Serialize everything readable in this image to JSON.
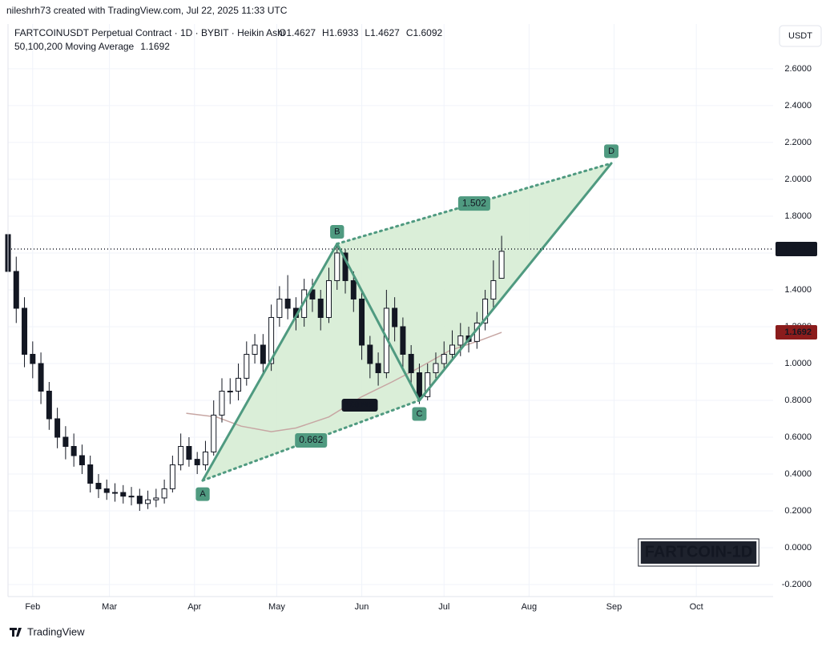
{
  "header": {
    "credit": "nileshrh73 created with TradingView.com, Jul 22, 2025 11:33 UTC",
    "symbol": "FARTCOINUSDT Perpetual Contract · 1D · BYBIT · Heikin Ashi",
    "ohlc": [
      "O1.4627",
      "H1.6933",
      "L1.4627",
      "C1.6092"
    ],
    "ma_legend": "50,100,200 Moving Average",
    "currency": "USDT"
  },
  "footer": {
    "brand": "TradingView"
  },
  "chart_data": {
    "type": "candlestick",
    "watermark": "FARTCOIN-1D",
    "x": [
      22,
      25,
      28,
      31,
      34,
      37,
      40,
      43,
      46,
      49,
      52,
      55,
      58,
      61,
      64,
      67,
      70,
      73,
      76,
      79,
      82,
      85,
      88,
      91,
      94,
      97,
      100,
      103,
      106,
      109,
      112,
      115,
      118,
      121,
      124,
      127,
      130,
      133,
      136,
      139,
      142,
      145,
      148,
      151,
      154,
      157,
      160,
      163,
      166,
      169,
      172,
      175,
      178,
      181,
      184,
      187,
      190,
      193,
      196,
      199,
      202
    ],
    "open": [
      1.7,
      1.5,
      1.3,
      1.05,
      1.0,
      0.85,
      0.7,
      0.6,
      0.55,
      0.5,
      0.45,
      0.35,
      0.32,
      0.3,
      0.3,
      0.28,
      0.28,
      0.24,
      0.26,
      0.27,
      0.32,
      0.45,
      0.55,
      0.48,
      0.45,
      0.52,
      0.72,
      0.85,
      0.85,
      0.92,
      1.05,
      1.1,
      1.0,
      1.25,
      1.35,
      1.3,
      1.25,
      1.4,
      1.35,
      1.25,
      1.45,
      1.6,
      1.45,
      1.35,
      1.1,
      1.0,
      0.95,
      1.3,
      1.2,
      1.05,
      0.95,
      0.82,
      0.95,
      1.0,
      1.05,
      1.1,
      1.15,
      1.12,
      1.22,
      1.35,
      1.4627
    ],
    "high": [
      1.75,
      1.58,
      1.36,
      1.12,
      1.06,
      0.9,
      0.76,
      0.66,
      0.62,
      0.56,
      0.5,
      0.4,
      0.37,
      0.35,
      0.34,
      0.33,
      0.32,
      0.31,
      0.32,
      0.37,
      0.5,
      0.62,
      0.6,
      0.52,
      0.58,
      0.8,
      0.92,
      0.92,
      1.0,
      1.12,
      1.16,
      1.16,
      1.32,
      1.42,
      1.48,
      1.36,
      1.46,
      1.46,
      1.4,
      1.52,
      1.65,
      1.62,
      1.5,
      1.4,
      1.15,
      1.06,
      1.4,
      1.36,
      1.25,
      1.1,
      1.0,
      1.0,
      1.06,
      1.12,
      1.18,
      1.22,
      1.2,
      1.28,
      1.4,
      1.56,
      1.6933
    ],
    "low": [
      1.4,
      1.22,
      0.98,
      0.92,
      0.78,
      0.64,
      0.54,
      0.48,
      0.44,
      0.4,
      0.3,
      0.27,
      0.26,
      0.25,
      0.24,
      0.23,
      0.2,
      0.21,
      0.22,
      0.24,
      0.3,
      0.42,
      0.44,
      0.4,
      0.42,
      0.5,
      0.68,
      0.78,
      0.8,
      0.88,
      1.0,
      0.94,
      0.96,
      1.2,
      1.24,
      1.18,
      1.2,
      1.28,
      1.18,
      1.22,
      1.4,
      1.38,
      1.28,
      1.02,
      0.92,
      0.88,
      0.92,
      1.12,
      0.98,
      0.88,
      0.78,
      0.8,
      0.92,
      0.96,
      1.02,
      1.04,
      1.06,
      1.08,
      1.18,
      1.3,
      1.4627
    ],
    "close": [
      1.5,
      1.3,
      1.05,
      1.0,
      0.85,
      0.7,
      0.6,
      0.55,
      0.5,
      0.45,
      0.35,
      0.32,
      0.3,
      0.3,
      0.28,
      0.28,
      0.24,
      0.26,
      0.27,
      0.32,
      0.45,
      0.55,
      0.48,
      0.45,
      0.52,
      0.72,
      0.85,
      0.85,
      0.92,
      1.05,
      1.1,
      1.0,
      1.25,
      1.35,
      1.3,
      1.25,
      1.4,
      1.35,
      1.25,
      1.45,
      1.6,
      1.45,
      1.35,
      1.1,
      1.0,
      0.95,
      1.3,
      1.2,
      1.05,
      0.95,
      0.82,
      0.95,
      1.0,
      1.05,
      1.1,
      1.15,
      1.12,
      1.22,
      1.35,
      1.45,
      1.6092
    ],
    "up_color": "#ffffff",
    "down_color": "#131722",
    "ma": {
      "label": "100 MA",
      "color": "#c7a6a3",
      "last": 1.1692,
      "last_color": "#8b1c1c",
      "x": [
        87,
        98,
        107,
        118,
        127,
        139,
        151,
        162,
        171,
        183,
        195,
        202
      ],
      "values": [
        0.73,
        0.71,
        0.66,
        0.63,
        0.65,
        0.71,
        0.82,
        0.9,
        0.97,
        1.07,
        1.13,
        1.1692
      ]
    },
    "last_price": 1.6214,
    "pattern": {
      "color": "#4f9a80",
      "fill": "#d6ecd4",
      "labels": [
        "A",
        "B",
        "C",
        "D"
      ],
      "x": [
        93,
        142,
        172,
        242
      ],
      "values": [
        0.365,
        1.65,
        0.8,
        2.087
      ],
      "ratio_labels": [
        "0.662",
        "1.502"
      ]
    },
    "xlim": [
      22,
      301
    ],
    "xticks": [
      {
        "value": 31,
        "label": "Feb"
      },
      {
        "value": 59,
        "label": "Mar"
      },
      {
        "value": 90,
        "label": "Apr"
      },
      {
        "value": 120,
        "label": "May"
      },
      {
        "value": 151,
        "label": "Jun"
      },
      {
        "value": 181,
        "label": "Jul"
      },
      {
        "value": 212,
        "label": "Aug"
      },
      {
        "value": 243,
        "label": "Sep"
      },
      {
        "value": 273,
        "label": "Oct"
      }
    ],
    "ylim": [
      -0.265,
      2.843
    ],
    "yticks": [
      {
        "value": -0.2,
        "label": "-0.2000"
      },
      {
        "value": 0,
        "label": "0.0000"
      },
      {
        "value": 0.2,
        "label": "0.2000"
      },
      {
        "value": 0.4,
        "label": "0.4000"
      },
      {
        "value": 0.6,
        "label": "0.6000"
      },
      {
        "value": 0.8,
        "label": "0.8000"
      },
      {
        "value": 1.0,
        "label": "1.0000"
      },
      {
        "value": 1.2,
        "label": "1.2000"
      },
      {
        "value": 1.4,
        "label": "1.4000"
      },
      {
        "value": 1.6,
        "label": "1.6000"
      },
      {
        "value": 1.8,
        "label": "1.8000"
      },
      {
        "value": 2.0,
        "label": "2.0000"
      },
      {
        "value": 2.2,
        "label": "2.2000"
      },
      {
        "value": 2.4,
        "label": "2.4000"
      },
      {
        "value": 2.6,
        "label": "2.6000"
      }
    ],
    "grid": true
  }
}
